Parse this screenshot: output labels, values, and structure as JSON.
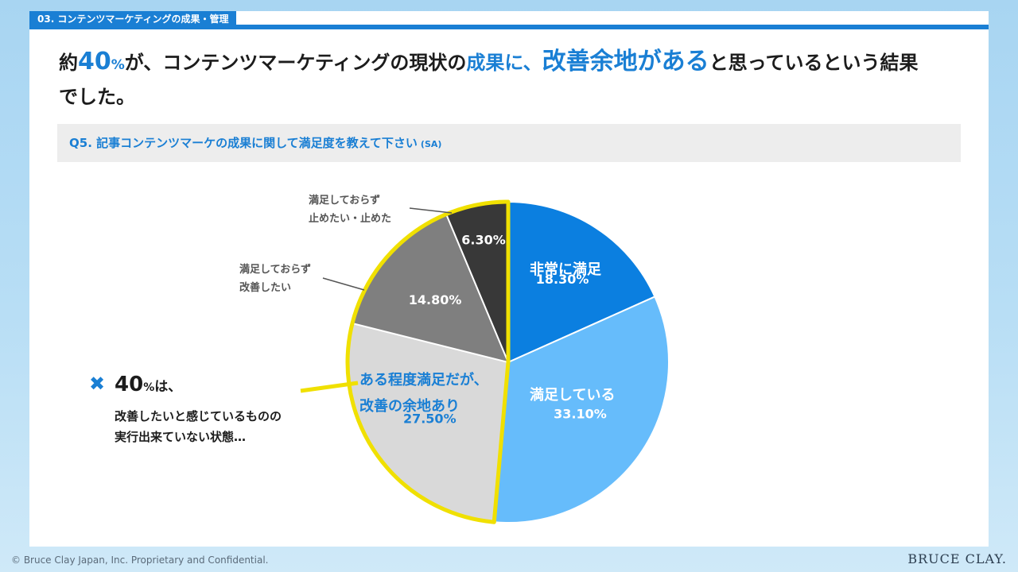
{
  "section_tag": "03. コンテンツマーケティングの成果・管理",
  "headline": {
    "p1": "約",
    "num": "40",
    "pct": "%",
    "p2": "が、コンテンツマーケティングの現状の",
    "blue1": "成果に、",
    "big": "改善余地がある",
    "p3": "と思っているという結果",
    "p4": "でした。"
  },
  "question": {
    "text": "Q5. 記事コンテンツマーケの成果に関して満足度を教えて下さい",
    "tag": "(SA)"
  },
  "chart_data": {
    "type": "pie",
    "start_angle_deg": 0,
    "direction": "clockwise",
    "slices": [
      {
        "label": "非常に満足",
        "value": 18.3,
        "display": "18.30%",
        "color": "#0b7fe0"
      },
      {
        "label": "満足している",
        "value": 33.1,
        "display": "33.10%",
        "color": "#66bcfb"
      },
      {
        "label": "ある程度満足だが、改善の余地あり",
        "value": 27.5,
        "display": "27.50%",
        "color": "#d9d9d9"
      },
      {
        "label": "満足しておらず改善したい",
        "value": 14.8,
        "display": "14.80%",
        "color": "#7f7f7f"
      },
      {
        "label": "満足しておらず止めたい・止めた",
        "value": 6.3,
        "display": "6.30%",
        "color": "#383838"
      }
    ],
    "highlight_slices": [
      2,
      3,
      4
    ],
    "highlight_color": "#f0e000",
    "callouts": {
      "label_3_line1": "満足しておらず",
      "label_3_line2": "改善したい",
      "label_4_line1": "満足しておらず",
      "label_4_line2": "止めたい・止めた"
    },
    "inside_labels": {
      "slice_0": "非常に満足",
      "slice_1": "満足している",
      "slice_2_line1": "ある程度満足だが、",
      "slice_2_line2": "改善の余地あり"
    }
  },
  "note": {
    "mark": "✖",
    "num": "40",
    "pct": "%",
    "ha": "は、",
    "line1": "改善したいと感じているものの",
    "line2": "実行出来ていない状態…"
  },
  "footer": {
    "copyright": "© Bruce Clay Japan, Inc. Proprietary and Confidential.",
    "logo": "BRUCE CLAY."
  }
}
